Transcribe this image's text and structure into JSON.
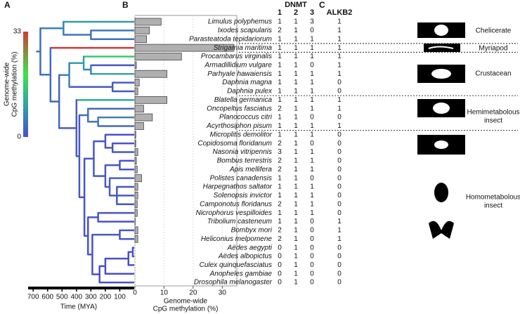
{
  "panel_labels": [
    "A",
    "B",
    "C"
  ],
  "colorbar": {
    "label": [
      "Genome-wide",
      "CpG methylation (%)"
    ],
    "ticks": [
      0,
      33
    ]
  },
  "time_axis": {
    "label": "Time (MYA)",
    "xlim": [
      735,
      0
    ],
    "xticks": [
      700,
      600,
      500,
      400,
      300,
      200,
      100
    ]
  },
  "chart_data": {
    "type": "bar",
    "orientation": "horizontal",
    "xlabel": [
      "Genome-wide",
      "CpG methylation (%)"
    ],
    "categories": [
      "Limulus polyphemus",
      "Ixodes scapularis",
      "Parasteatoda tepidariorum",
      "Strigamia maritima",
      "Procambarus virginalis",
      "Armadillidium vulgare",
      "Parhyale hawaiensis",
      "Daphnia magna",
      "Daphnia pulex",
      "Blatella germanica",
      "Oncopeltus fasciatus",
      "Planococcus citri",
      "Acyrthosiphon pisum",
      "Microplitis demolitor",
      "Copidosoma floridanum",
      "Nasonia vitripennis",
      "Bombus terrestris",
      "Apis mellifera",
      "Polistes canadensis",
      "Harpegnathos saltator",
      "Solenopsis invictor",
      "Camponotus floridanus",
      "Nicrophorus vespilloides",
      "Tribolium casteneum",
      "Bombyx mori",
      "Heliconius melpomene",
      "Aëdes aegypti",
      "Aëdes albopictus",
      "Culex quinquefasciatus",
      "Anopheles gambiae",
      "Drosophila melanogaster"
    ],
    "values": [
      9,
      5,
      4,
      34,
      16,
      0.5,
      11,
      1.5,
      1,
      11,
      3,
      6,
      3,
      0.3,
      0.3,
      1,
      0.5,
      0.8,
      2.3,
      1,
      1,
      0.8,
      0.8,
      0.1,
      1,
      1,
      0,
      0,
      0,
      0,
      0
    ],
    "color": "#b0b0b0",
    "xlim": [
      0,
      35
    ],
    "xticks": [
      0,
      10,
      20,
      30
    ],
    "grid": true
  },
  "table": {
    "group_header": "DNMT",
    "columns": [
      "1",
      "2",
      "3",
      "ALKB2"
    ],
    "rows": [
      [
        1,
        1,
        3,
        1
      ],
      [
        2,
        1,
        0,
        1
      ],
      [
        1,
        1,
        1,
        1
      ],
      [
        1,
        1,
        1,
        1
      ],
      [
        1,
        1,
        1,
        1
      ],
      [
        1,
        1,
        0,
        1
      ],
      [
        1,
        1,
        1,
        1
      ],
      [
        1,
        1,
        1,
        0
      ],
      [
        1,
        1,
        1,
        0
      ],
      [
        1,
        1,
        1,
        1
      ],
      [
        2,
        1,
        1,
        1
      ],
      [
        1,
        1,
        0,
        0
      ],
      [
        1,
        1,
        1,
        1
      ],
      [
        1,
        1,
        1,
        0
      ],
      [
        2,
        1,
        0,
        0
      ],
      [
        3,
        1,
        1,
        0
      ],
      [
        2,
        1,
        1,
        0
      ],
      [
        2,
        1,
        1,
        0
      ],
      [
        1,
        1,
        0,
        0
      ],
      [
        1,
        1,
        1,
        0
      ],
      [
        1,
        1,
        1,
        0
      ],
      [
        2,
        1,
        1,
        0
      ],
      [
        1,
        1,
        1,
        0
      ],
      [
        1,
        1,
        0,
        1
      ],
      [
        2,
        1,
        0,
        1
      ],
      [
        2,
        1,
        0,
        1
      ],
      [
        0,
        1,
        0,
        0
      ],
      [
        0,
        1,
        0,
        0
      ],
      [
        0,
        1,
        0,
        0
      ],
      [
        0,
        1,
        0,
        0
      ],
      [
        0,
        1,
        0,
        0
      ]
    ]
  },
  "groups": [
    [
      "Chelicerate"
    ],
    [
      "Myriapod"
    ],
    [
      "Crustacean"
    ],
    [
      "Hemimetabolous",
      "insect"
    ],
    [
      "Homometabolous",
      "insect"
    ]
  ]
}
